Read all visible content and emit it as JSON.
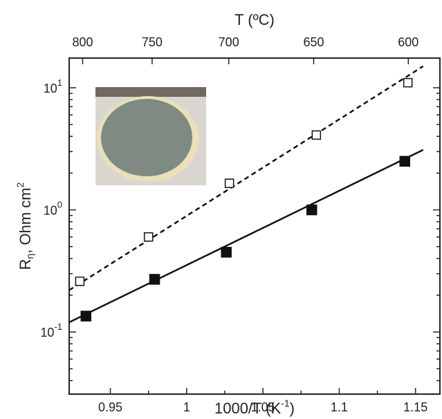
{
  "chart_data": {
    "type": "scatter",
    "xlabel": {
      "text": "1000/T (K",
      "sup": "-1",
      "end": ")"
    },
    "ylabel": {
      "base": "R",
      "sub": "η",
      "text": ", Ohm cm",
      "sup": "2"
    },
    "x2label": "T (ºC)",
    "xlim": [
      0.923,
      1.166
    ],
    "xticks": [
      0.95,
      1,
      1.05,
      1.1,
      1.15
    ],
    "x2ticks": [
      800,
      750,
      700,
      650,
      600
    ],
    "ylim": [
      0.031,
      17.5
    ],
    "ylog": true,
    "yticks": [
      {
        "value": 0.1,
        "label": "10",
        "sup": "-1"
      },
      {
        "value": 1,
        "label": "10",
        "sup": "0"
      },
      {
        "value": 10,
        "label": "10",
        "sup": "1"
      }
    ],
    "series": [
      {
        "marker": "open",
        "color": "#111111",
        "x": [
          0.93,
          0.975,
          1.028,
          1.085,
          1.145
        ],
        "values": [
          0.26,
          0.6,
          1.65,
          4.1,
          11
        ]
      },
      {
        "marker": "filled",
        "color": "#111111",
        "x": [
          0.934,
          0.979,
          1.026,
          1.082,
          1.143
        ],
        "values": [
          0.135,
          0.27,
          0.45,
          1.0,
          2.5
        ]
      }
    ],
    "fits": [
      {
        "dash": true,
        "color": "#111111",
        "x": [
          0.923,
          1.155
        ],
        "values": [
          0.22,
          15
        ]
      },
      {
        "dash": false,
        "color": "#111111",
        "x": [
          0.923,
          1.155
        ],
        "values": [
          0.12,
          3.1
        ]
      }
    ]
  }
}
